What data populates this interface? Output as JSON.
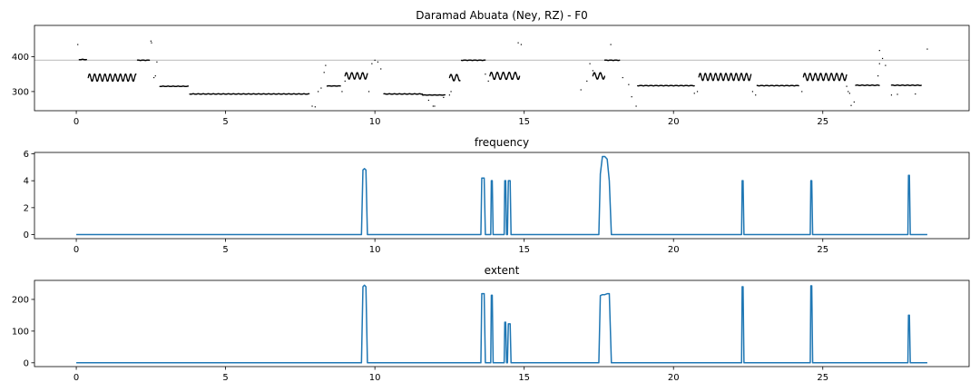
{
  "chart_data": [
    {
      "type": "scatter",
      "title": "Daramad Abuata (Ney, RZ) - F0",
      "xlabel": "",
      "ylabel": "",
      "xlim": [
        -1.4,
        29.9
      ],
      "ylim": [
        245,
        490
      ],
      "xticks": [
        0,
        5,
        10,
        15,
        20,
        25
      ],
      "yticks": [
        300,
        400
      ],
      "hline": 390,
      "segments": [
        {
          "kind": "pts",
          "data": [
            [
              0.05,
              435
            ],
            [
              2.5,
              445
            ],
            [
              2.52,
              440
            ],
            [
              14.8,
              440
            ],
            [
              14.9,
              435
            ],
            [
              17.9,
              435
            ],
            [
              26.9,
              418
            ],
            [
              28.5,
              422
            ]
          ]
        },
        {
          "kind": "flat",
          "x0": 0.1,
          "x1": 0.35,
          "y": 392
        },
        {
          "kind": "vib",
          "x0": 0.4,
          "x1": 2.0,
          "y": 340,
          "amp": 10,
          "f": 5.8
        },
        {
          "kind": "flat",
          "x0": 2.05,
          "x1": 2.45,
          "y": 390
        },
        {
          "kind": "pts",
          "data": [
            [
              2.6,
              340
            ],
            [
              2.65,
              345
            ],
            [
              2.7,
              385
            ]
          ]
        },
        {
          "kind": "flat",
          "x0": 2.8,
          "x1": 3.75,
          "y": 315
        },
        {
          "kind": "flat",
          "x0": 3.8,
          "x1": 7.8,
          "y": 293
        },
        {
          "kind": "pts",
          "data": [
            [
              7.9,
              258
            ],
            [
              8.0,
              256
            ],
            [
              8.1,
              300
            ],
            [
              8.2,
              310
            ],
            [
              8.3,
              355
            ],
            [
              8.35,
              375
            ]
          ]
        },
        {
          "kind": "flat",
          "x0": 8.4,
          "x1": 8.85,
          "y": 316
        },
        {
          "kind": "pts",
          "data": [
            [
              8.9,
              300
            ],
            [
              9.0,
              330
            ]
          ]
        },
        {
          "kind": "vib",
          "x0": 9.0,
          "x1": 9.75,
          "y": 345,
          "amp": 9,
          "f": 5.5
        },
        {
          "kind": "pts",
          "data": [
            [
              9.8,
              300
            ],
            [
              9.9,
              380
            ],
            [
              10.0,
              390
            ],
            [
              10.1,
              385
            ],
            [
              10.2,
              365
            ]
          ]
        },
        {
          "kind": "flat",
          "x0": 10.3,
          "x1": 11.6,
          "y": 293
        },
        {
          "kind": "flat",
          "x0": 11.6,
          "x1": 12.35,
          "y": 290
        },
        {
          "kind": "pts",
          "data": [
            [
              11.8,
              275
            ],
            [
              11.95,
              258
            ],
            [
              12.0,
              258
            ],
            [
              12.3,
              283
            ],
            [
              12.5,
              290
            ],
            [
              12.55,
              300
            ]
          ]
        },
        {
          "kind": "vib",
          "x0": 12.5,
          "x1": 12.85,
          "y": 340,
          "amp": 9,
          "f": 5.2
        },
        {
          "kind": "flat",
          "x0": 12.9,
          "x1": 13.7,
          "y": 390
        },
        {
          "kind": "pts",
          "data": [
            [
              13.7,
              350
            ],
            [
              13.8,
              330
            ]
          ]
        },
        {
          "kind": "vib",
          "x0": 13.85,
          "x1": 14.85,
          "y": 345,
          "amp": 10,
          "f": 5.0
        },
        {
          "kind": "pts",
          "data": [
            [
              16.9,
              305
            ],
            [
              17.1,
              330
            ],
            [
              17.2,
              380
            ],
            [
              17.3,
              360
            ]
          ]
        },
        {
          "kind": "vib",
          "x0": 17.3,
          "x1": 17.7,
          "y": 345,
          "amp": 9,
          "f": 5.0
        },
        {
          "kind": "flat",
          "x0": 17.7,
          "x1": 18.2,
          "y": 390
        },
        {
          "kind": "pts",
          "data": [
            [
              18.3,
              340
            ],
            [
              18.5,
              320
            ],
            [
              18.6,
              285
            ],
            [
              18.75,
              258
            ]
          ]
        },
        {
          "kind": "flat",
          "x0": 18.8,
          "x1": 20.7,
          "y": 317
        },
        {
          "kind": "pts",
          "data": [
            [
              20.7,
              295
            ],
            [
              20.8,
              300
            ]
          ]
        },
        {
          "kind": "vib",
          "x0": 20.85,
          "x1": 22.6,
          "y": 342,
          "amp": 10,
          "f": 5.8
        },
        {
          "kind": "pts",
          "data": [
            [
              22.65,
              300
            ],
            [
              22.75,
              290
            ]
          ]
        },
        {
          "kind": "flat",
          "x0": 22.8,
          "x1": 24.2,
          "y": 317
        },
        {
          "kind": "pts",
          "data": [
            [
              24.3,
              300
            ]
          ]
        },
        {
          "kind": "vib",
          "x0": 24.35,
          "x1": 25.8,
          "y": 342,
          "amp": 10,
          "f": 5.6
        },
        {
          "kind": "pts",
          "data": [
            [
              25.8,
              315
            ],
            [
              25.85,
              300
            ],
            [
              25.9,
              295
            ],
            [
              25.95,
              260
            ],
            [
              26.05,
              270
            ]
          ]
        },
        {
          "kind": "flat",
          "x0": 26.1,
          "x1": 26.9,
          "y": 318
        },
        {
          "kind": "pts",
          "data": [
            [
              26.85,
              345
            ],
            [
              26.9,
              380
            ],
            [
              27.0,
              395
            ],
            [
              27.1,
              375
            ]
          ]
        },
        {
          "kind": "flat",
          "x0": 27.3,
          "x1": 28.3,
          "y": 318
        },
        {
          "kind": "pts",
          "data": [
            [
              27.3,
              290
            ],
            [
              27.5,
              292
            ],
            [
              28.1,
              293
            ]
          ]
        }
      ]
    },
    {
      "type": "line",
      "title": "frequency",
      "xlabel": "",
      "ylabel": "",
      "xlim": [
        -1.4,
        29.9
      ],
      "ylim": [
        -0.3,
        6.1
      ],
      "xticks": [
        0,
        5,
        10,
        15,
        20,
        25
      ],
      "yticks": [
        0,
        2,
        4,
        6
      ],
      "series": [
        {
          "color": "#1f77b4",
          "x": [
            0,
            9.55,
            9.6,
            9.65,
            9.7,
            9.75,
            13.55,
            13.58,
            13.62,
            13.66,
            13.7,
            13.88,
            13.9,
            13.93,
            13.96,
            14.33,
            14.35,
            14.38,
            14.41,
            14.44,
            14.47,
            14.5,
            14.53,
            14.56,
            17.5,
            17.55,
            17.62,
            17.7,
            17.78,
            17.85,
            17.92,
            22.28,
            22.3,
            22.33,
            22.36,
            24.58,
            24.6,
            24.63,
            24.66,
            27.85,
            27.87,
            27.9,
            27.93,
            28.5
          ],
          "y": [
            0,
            0,
            4.8,
            4.9,
            4.8,
            0,
            0,
            4.2,
            4.2,
            4.2,
            0,
            0,
            4.0,
            4.0,
            0,
            0,
            4.0,
            4.0,
            0,
            0,
            4.0,
            4.0,
            4.0,
            0,
            0,
            4.5,
            5.8,
            5.8,
            5.6,
            4.0,
            0,
            0,
            4.0,
            4.0,
            0,
            0,
            4.0,
            4.0,
            0,
            0,
            4.4,
            4.4,
            0,
            0
          ]
        }
      ]
    },
    {
      "type": "line",
      "title": "extent",
      "xlabel": "",
      "ylabel": "",
      "xlim": [
        -1.4,
        29.9
      ],
      "ylim": [
        -12,
        260
      ],
      "xticks": [
        0,
        5,
        10,
        15,
        20,
        25
      ],
      "yticks": [
        0,
        100,
        200
      ],
      "series": [
        {
          "color": "#1f77b4",
          "x": [
            0,
            9.55,
            9.6,
            9.65,
            9.7,
            9.75,
            13.55,
            13.58,
            13.62,
            13.66,
            13.7,
            13.88,
            13.9,
            13.93,
            13.96,
            14.33,
            14.35,
            14.38,
            14.41,
            14.44,
            14.47,
            14.5,
            14.53,
            14.56,
            17.5,
            17.55,
            17.62,
            17.7,
            17.78,
            17.85,
            17.92,
            22.28,
            22.3,
            22.33,
            22.36,
            24.58,
            24.6,
            24.63,
            24.66,
            27.85,
            27.87,
            27.9,
            27.93,
            28.5
          ],
          "y": [
            0,
            0,
            240,
            245,
            240,
            0,
            0,
            218,
            218,
            218,
            0,
            0,
            213,
            213,
            0,
            0,
            128,
            128,
            0,
            0,
            123,
            123,
            123,
            0,
            0,
            212,
            215,
            215,
            218,
            218,
            0,
            0,
            240,
            240,
            0,
            0,
            243,
            243,
            0,
            0,
            150,
            150,
            0,
            0
          ]
        }
      ]
    }
  ]
}
